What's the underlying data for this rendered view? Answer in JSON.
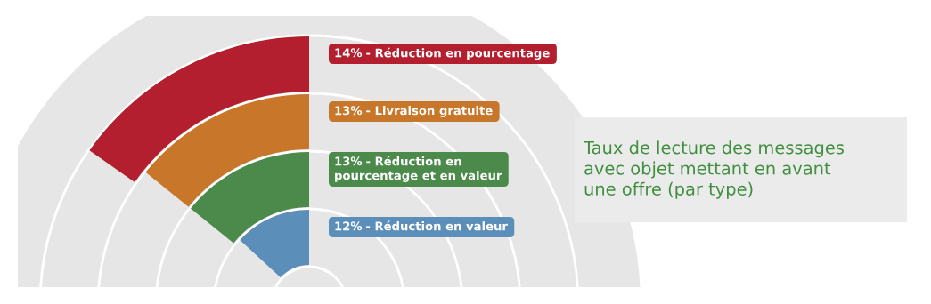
{
  "chart_data": {
    "type": "other",
    "title": "Taux de lecture des messages\navec objet mettant en avant\nune offre (par type)",
    "categories": [
      "- Réduction en pourcentage",
      "- Livraison gratuite",
      "- Réduction en\npourcentage et en valeur",
      "- Réduction en valeur"
    ],
    "values": [
      14,
      13,
      13,
      12
    ],
    "value_labels": [
      "14%",
      "13%",
      "13%",
      "12%"
    ],
    "colors": [
      "#b31f2f",
      "#c8772a",
      "#4b8a4b",
      "#5b8eb9"
    ]
  }
}
